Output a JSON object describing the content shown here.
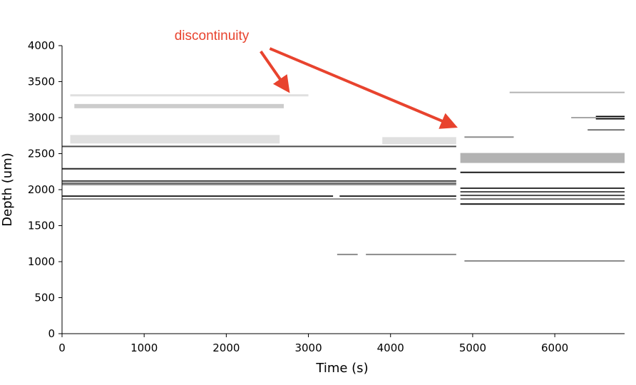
{
  "chart_data": {
    "type": "heatmap",
    "title": "",
    "xlabel": "Time (s)",
    "ylabel": "Depth (um)",
    "xlim": [
      0,
      6850
    ],
    "ylim": [
      0,
      4000
    ],
    "x_ticks": [
      0,
      1000,
      2000,
      3000,
      4000,
      5000,
      6000
    ],
    "x_tick_labels": [
      "0",
      "1000",
      "2000",
      "3000",
      "4000",
      "5000",
      "6000"
    ],
    "y_ticks": [
      0,
      500,
      1000,
      1500,
      2000,
      2500,
      3000,
      3500,
      4000
    ],
    "y_tick_labels": [
      "0",
      "500",
      "1000",
      "1500",
      "2000",
      "2500",
      "3000",
      "3500",
      "4000"
    ],
    "colormap": "binary",
    "grid": false,
    "spines": "left-bottom",
    "tracks": [
      {
        "x_start": 100,
        "x_end": 3000,
        "depth": 3310,
        "intensity": 0.12,
        "width": 3
      },
      {
        "x_start": 150,
        "x_end": 2700,
        "depth": 3160,
        "intensity": 0.2,
        "width": 6
      },
      {
        "x_start": 100,
        "x_end": 2650,
        "depth": 2700,
        "intensity": 0.12,
        "width": 12
      },
      {
        "x_start": 0,
        "x_end": 4800,
        "depth": 2600,
        "intensity": 0.7,
        "width": 2
      },
      {
        "x_start": 3900,
        "x_end": 4800,
        "depth": 2680,
        "intensity": 0.12,
        "width": 10
      },
      {
        "x_start": 0,
        "x_end": 4800,
        "depth": 2290,
        "intensity": 0.85,
        "width": 2
      },
      {
        "x_start": 0,
        "x_end": 4800,
        "depth": 2120,
        "intensity": 0.75,
        "width": 2
      },
      {
        "x_start": 0,
        "x_end": 4800,
        "depth": 2090,
        "intensity": 0.6,
        "width": 2
      },
      {
        "x_start": 0,
        "x_end": 4800,
        "depth": 2070,
        "intensity": 0.45,
        "width": 2
      },
      {
        "x_start": 0,
        "x_end": 3300,
        "depth": 1910,
        "intensity": 0.85,
        "width": 2
      },
      {
        "x_start": 3380,
        "x_end": 4800,
        "depth": 1910,
        "intensity": 0.85,
        "width": 2
      },
      {
        "x_start": 0,
        "x_end": 4800,
        "depth": 1870,
        "intensity": 0.45,
        "width": 2
      },
      {
        "x_start": 3350,
        "x_end": 3600,
        "depth": 1100,
        "intensity": 0.45,
        "width": 2
      },
      {
        "x_start": 3700,
        "x_end": 4800,
        "depth": 1100,
        "intensity": 0.45,
        "width": 2
      },
      {
        "x_start": 5450,
        "x_end": 6850,
        "depth": 3350,
        "intensity": 0.3,
        "width": 2
      },
      {
        "x_start": 6500,
        "x_end": 6850,
        "depth": 3000,
        "intensity": 1.0,
        "width": 5
      },
      {
        "x_start": 6200,
        "x_end": 6850,
        "depth": 3000,
        "intensity": 0.35,
        "width": 2
      },
      {
        "x_start": 6400,
        "x_end": 6850,
        "depth": 2830,
        "intensity": 0.55,
        "width": 2
      },
      {
        "x_start": 4900,
        "x_end": 5500,
        "depth": 2730,
        "intensity": 0.45,
        "width": 2
      },
      {
        "x_start": 4850,
        "x_end": 6850,
        "depth": 2440,
        "intensity": 0.3,
        "width": 14
      },
      {
        "x_start": 4850,
        "x_end": 6850,
        "depth": 2240,
        "intensity": 0.9,
        "width": 2
      },
      {
        "x_start": 4850,
        "x_end": 6850,
        "depth": 2020,
        "intensity": 0.8,
        "width": 2
      },
      {
        "x_start": 4850,
        "x_end": 6850,
        "depth": 1970,
        "intensity": 0.7,
        "width": 2
      },
      {
        "x_start": 4850,
        "x_end": 6850,
        "depth": 1920,
        "intensity": 0.7,
        "width": 2
      },
      {
        "x_start": 4850,
        "x_end": 6850,
        "depth": 1870,
        "intensity": 0.6,
        "width": 2
      },
      {
        "x_start": 4850,
        "x_end": 6850,
        "depth": 1800,
        "intensity": 0.9,
        "width": 2
      },
      {
        "x_start": 4900,
        "x_end": 6850,
        "depth": 1010,
        "intensity": 0.45,
        "width": 2
      }
    ],
    "annotations": [
      {
        "text": "discontinuity",
        "color": "#e8432e",
        "arrows": [
          {
            "from_x": 2420,
            "from_y": 3920,
            "to_x": 2750,
            "to_y": 3380
          },
          {
            "from_x": 2530,
            "from_y": 3960,
            "to_x": 4780,
            "to_y": 2880
          }
        ]
      }
    ]
  }
}
